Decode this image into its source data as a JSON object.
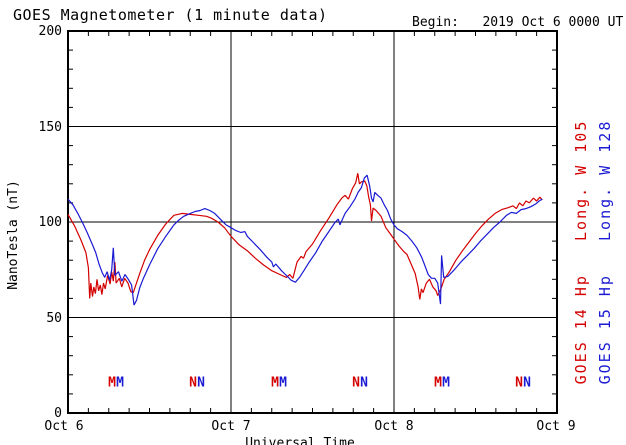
{
  "chart_data": {
    "type": "line",
    "title": "GOES Magnetometer (1 minute data)",
    "begin_label": "Begin:   2019 Oct 6 0000 UT",
    "xlabel": "Universal Time",
    "ylabel": "NanoTesla (nT)",
    "ylim": [
      0,
      200
    ],
    "xlim_days": [
      0,
      3
    ],
    "x_tick_labels": [
      "Oct 6",
      "Oct 7",
      "Oct 8",
      "Oct 9"
    ],
    "y_tick_labels": [
      "200",
      "150",
      "100",
      "50",
      "0"
    ],
    "y_ticks": [
      0,
      50,
      100,
      150,
      200
    ],
    "y_minor_tick_step_nT": 10,
    "x_minor_tick_step_days": 0.125,
    "grid": {
      "y_values": [
        50,
        100,
        150
      ],
      "x_days": [
        1,
        2
      ],
      "on": true
    },
    "legend_position": "right-side-rotated",
    "series": [
      {
        "name": "GOES 14 Hp",
        "longitude": "Long. W 105",
        "side_label": "GOES 14 Hp   Long. W 105",
        "color": "#d40000",
        "points": [
          [
            0,
            104
          ],
          [
            0.04,
            98
          ],
          [
            0.08,
            90.5
          ],
          [
            0.11,
            84
          ],
          [
            0.125,
            76
          ],
          [
            0.133,
            60
          ],
          [
            0.14,
            68
          ],
          [
            0.15,
            61
          ],
          [
            0.158,
            66
          ],
          [
            0.168,
            62.5
          ],
          [
            0.178,
            70
          ],
          [
            0.188,
            64
          ],
          [
            0.198,
            67
          ],
          [
            0.208,
            62
          ],
          [
            0.218,
            68
          ],
          [
            0.228,
            65
          ],
          [
            0.243,
            72
          ],
          [
            0.258,
            67.5
          ],
          [
            0.268,
            74
          ],
          [
            0.278,
            69
          ],
          [
            0.288,
            79
          ],
          [
            0.295,
            68
          ],
          [
            0.315,
            70.5
          ],
          [
            0.33,
            66
          ],
          [
            0.348,
            70.5
          ],
          [
            0.368,
            68
          ],
          [
            0.385,
            63.5
          ],
          [
            0.4,
            63
          ],
          [
            0.42,
            68
          ],
          [
            0.44,
            73
          ],
          [
            0.47,
            80
          ],
          [
            0.5,
            85.5
          ],
          [
            0.55,
            93
          ],
          [
            0.6,
            99
          ],
          [
            0.65,
            103.5
          ],
          [
            0.7,
            104.5
          ],
          [
            0.75,
            104
          ],
          [
            0.8,
            103.5
          ],
          [
            0.85,
            103
          ],
          [
            0.88,
            102
          ],
          [
            0.92,
            100
          ],
          [
            0.96,
            97
          ],
          [
            1,
            92.5
          ],
          [
            1.05,
            88
          ],
          [
            1.1,
            85
          ],
          [
            1.15,
            81
          ],
          [
            1.2,
            77.5
          ],
          [
            1.25,
            74.5
          ],
          [
            1.3,
            72.5
          ],
          [
            1.34,
            71
          ],
          [
            1.36,
            72.5
          ],
          [
            1.38,
            70.5
          ],
          [
            1.405,
            79
          ],
          [
            1.43,
            82
          ],
          [
            1.445,
            81
          ],
          [
            1.46,
            84.5
          ],
          [
            1.5,
            88.5
          ],
          [
            1.55,
            95.5
          ],
          [
            1.6,
            102
          ],
          [
            1.65,
            109
          ],
          [
            1.68,
            112.5
          ],
          [
            1.7,
            114
          ],
          [
            1.72,
            112
          ],
          [
            1.745,
            117.5
          ],
          [
            1.765,
            120.5
          ],
          [
            1.778,
            125.5
          ],
          [
            1.788,
            120
          ],
          [
            1.8,
            121
          ],
          [
            1.82,
            121.5
          ],
          [
            1.833,
            119
          ],
          [
            1.845,
            113
          ],
          [
            1.855,
            109
          ],
          [
            1.862,
            100.5
          ],
          [
            1.872,
            107.3
          ],
          [
            1.89,
            106
          ],
          [
            1.92,
            103
          ],
          [
            1.95,
            97
          ],
          [
            1.98,
            93.5
          ],
          [
            2,
            91
          ],
          [
            2.03,
            87.5
          ],
          [
            2.06,
            84.5
          ],
          [
            2.08,
            83
          ],
          [
            2.1,
            79
          ],
          [
            2.13,
            73
          ],
          [
            2.148,
            66
          ],
          [
            2.158,
            59.5
          ],
          [
            2.168,
            65
          ],
          [
            2.178,
            63
          ],
          [
            2.198,
            68
          ],
          [
            2.218,
            70
          ],
          [
            2.238,
            66
          ],
          [
            2.258,
            64
          ],
          [
            2.268,
            61.5
          ],
          [
            2.288,
            65
          ],
          [
            2.308,
            70
          ],
          [
            2.34,
            74
          ],
          [
            2.38,
            80
          ],
          [
            2.42,
            85
          ],
          [
            2.46,
            89.5
          ],
          [
            2.5,
            94
          ],
          [
            2.54,
            98
          ],
          [
            2.58,
            101.5
          ],
          [
            2.62,
            104.5
          ],
          [
            2.66,
            106.5
          ],
          [
            2.7,
            107.5
          ],
          [
            2.73,
            108.5
          ],
          [
            2.75,
            107
          ],
          [
            2.77,
            110
          ],
          [
            2.79,
            108.5
          ],
          [
            2.81,
            111
          ],
          [
            2.83,
            110
          ],
          [
            2.855,
            112.5
          ],
          [
            2.875,
            111
          ],
          [
            2.895,
            113
          ],
          [
            2.91,
            111.5
          ]
        ]
      },
      {
        "name": "GOES 15 Hp",
        "longitude": "Long. W 128",
        "side_label": "GOES 15 Hp   Long. W 128",
        "color": "#1a1ad4",
        "points": [
          [
            0,
            112
          ],
          [
            0.03,
            109
          ],
          [
            0.06,
            104.5
          ],
          [
            0.09,
            99.5
          ],
          [
            0.12,
            94
          ],
          [
            0.15,
            88
          ],
          [
            0.17,
            84
          ],
          [
            0.19,
            78
          ],
          [
            0.21,
            73.5
          ],
          [
            0.225,
            71
          ],
          [
            0.24,
            74
          ],
          [
            0.255,
            69.5
          ],
          [
            0.268,
            75
          ],
          [
            0.278,
            86.5
          ],
          [
            0.288,
            72
          ],
          [
            0.31,
            74
          ],
          [
            0.33,
            69
          ],
          [
            0.35,
            72.5
          ],
          [
            0.37,
            70
          ],
          [
            0.39,
            67
          ],
          [
            0.405,
            56.5
          ],
          [
            0.42,
            59
          ],
          [
            0.44,
            65.5
          ],
          [
            0.46,
            70
          ],
          [
            0.5,
            77.5
          ],
          [
            0.55,
            86
          ],
          [
            0.6,
            92.5
          ],
          [
            0.65,
            98.5
          ],
          [
            0.68,
            101
          ],
          [
            0.71,
            103
          ],
          [
            0.75,
            104.5
          ],
          [
            0.78,
            105.5
          ],
          [
            0.81,
            106
          ],
          [
            0.84,
            107
          ],
          [
            0.87,
            106
          ],
          [
            0.9,
            104.5
          ],
          [
            0.94,
            101
          ],
          [
            0.97,
            98.5
          ],
          [
            1,
            97
          ],
          [
            1.03,
            95.5
          ],
          [
            1.06,
            94.5
          ],
          [
            1.085,
            95
          ],
          [
            1.1,
            92.5
          ],
          [
            1.14,
            89
          ],
          [
            1.18,
            85.5
          ],
          [
            1.22,
            81.5
          ],
          [
            1.25,
            79
          ],
          [
            1.26,
            76.5
          ],
          [
            1.275,
            78
          ],
          [
            1.31,
            74.5
          ],
          [
            1.34,
            72
          ],
          [
            1.37,
            69.5
          ],
          [
            1.395,
            68.5
          ],
          [
            1.42,
            71
          ],
          [
            1.45,
            75
          ],
          [
            1.48,
            79
          ],
          [
            1.52,
            84
          ],
          [
            1.56,
            90
          ],
          [
            1.6,
            95
          ],
          [
            1.64,
            100
          ],
          [
            1.658,
            101.5
          ],
          [
            1.668,
            98.5
          ],
          [
            1.7,
            104.5
          ],
          [
            1.73,
            108
          ],
          [
            1.76,
            112
          ],
          [
            1.78,
            115.5
          ],
          [
            1.8,
            118
          ],
          [
            1.818,
            123
          ],
          [
            1.835,
            124.5
          ],
          [
            1.85,
            119
          ],
          [
            1.862,
            112.5
          ],
          [
            1.872,
            110.5
          ],
          [
            1.882,
            115.5
          ],
          [
            1.9,
            114
          ],
          [
            1.92,
            112.5
          ],
          [
            1.94,
            109
          ],
          [
            1.96,
            106
          ],
          [
            1.98,
            101.5
          ],
          [
            2,
            98.5
          ],
          [
            2.02,
            96.5
          ],
          [
            2.05,
            95
          ],
          [
            2.08,
            93
          ],
          [
            2.11,
            90
          ],
          [
            2.14,
            86.5
          ],
          [
            2.17,
            81.5
          ],
          [
            2.19,
            77
          ],
          [
            2.21,
            72.5
          ],
          [
            2.23,
            70.5
          ],
          [
            2.25,
            70.5
          ],
          [
            2.268,
            68
          ],
          [
            2.285,
            57
          ],
          [
            2.292,
            82.5
          ],
          [
            2.305,
            71
          ],
          [
            2.33,
            71.5
          ],
          [
            2.37,
            75
          ],
          [
            2.41,
            79
          ],
          [
            2.45,
            82.5
          ],
          [
            2.49,
            86
          ],
          [
            2.53,
            90
          ],
          [
            2.57,
            93.5
          ],
          [
            2.61,
            97
          ],
          [
            2.65,
            100
          ],
          [
            2.69,
            103.5
          ],
          [
            2.72,
            105
          ],
          [
            2.75,
            104.5
          ],
          [
            2.78,
            106.5
          ],
          [
            2.81,
            107
          ],
          [
            2.84,
            108
          ],
          [
            2.87,
            109.5
          ],
          [
            2.89,
            111
          ],
          [
            2.91,
            112
          ]
        ]
      }
    ],
    "event_markers": {
      "midnight_label": "M",
      "noon_label": "N",
      "y_nT": 14,
      "items": [
        {
          "t_days": 0.27,
          "label": "M",
          "series": 0
        },
        {
          "t_days": 0.319,
          "label": "M",
          "series": 1
        },
        {
          "t_days": 0.767,
          "label": "N",
          "series": 0
        },
        {
          "t_days": 0.816,
          "label": "N",
          "series": 1
        },
        {
          "t_days": 1.27,
          "label": "M",
          "series": 0
        },
        {
          "t_days": 1.319,
          "label": "M",
          "series": 1
        },
        {
          "t_days": 1.767,
          "label": "N",
          "series": 0
        },
        {
          "t_days": 1.816,
          "label": "N",
          "series": 1
        },
        {
          "t_days": 2.27,
          "label": "M",
          "series": 0
        },
        {
          "t_days": 2.319,
          "label": "M",
          "series": 1
        },
        {
          "t_days": 2.767,
          "label": "N",
          "series": 0
        },
        {
          "t_days": 2.816,
          "label": "N",
          "series": 1
        }
      ]
    },
    "frame_color": "#000000",
    "background_color": "#ffffff"
  }
}
